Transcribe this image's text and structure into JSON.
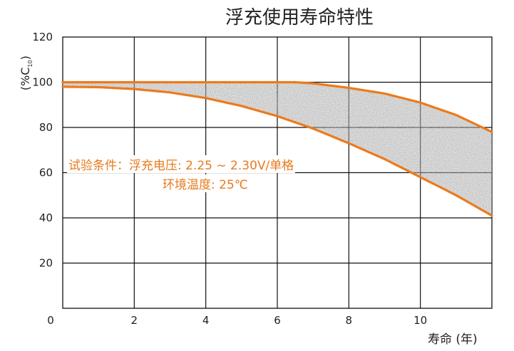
{
  "chart_data": {
    "type": "area",
    "title": "浮充使用寿命特性",
    "ylabel": "(%C",
    "ylabel_sub": "10",
    "ylabel_close": ")",
    "xlabel": "寿命 (年)",
    "xlim": [
      0,
      12
    ],
    "ylim": [
      0,
      120
    ],
    "xticks": [
      0,
      2,
      4,
      6,
      8,
      10
    ],
    "yticks": [
      20,
      40,
      60,
      80,
      100,
      120
    ],
    "grid": true,
    "annotations": [
      "试验条件：浮充电压: 2.25 ~ 2.30V/单格",
      "环境温度: 25℃"
    ],
    "series": [
      {
        "x": [
          0,
          1,
          2,
          3,
          4,
          5,
          6,
          7,
          8,
          9,
          10,
          11,
          12
        ],
        "values": [
          98,
          97.8,
          97,
          95.5,
          93,
          89.5,
          85,
          79.5,
          73,
          66,
          58,
          50,
          41
        ]
      },
      {
        "x": [
          0,
          6.5,
          7,
          8,
          9,
          10,
          11,
          12
        ],
        "values": [
          100,
          100,
          99.5,
          97.5,
          95,
          91,
          85.5,
          78
        ]
      }
    ],
    "colors": {
      "curve": "#ec7a1c",
      "band": "#9a9a9a",
      "grid": "#111111"
    }
  }
}
